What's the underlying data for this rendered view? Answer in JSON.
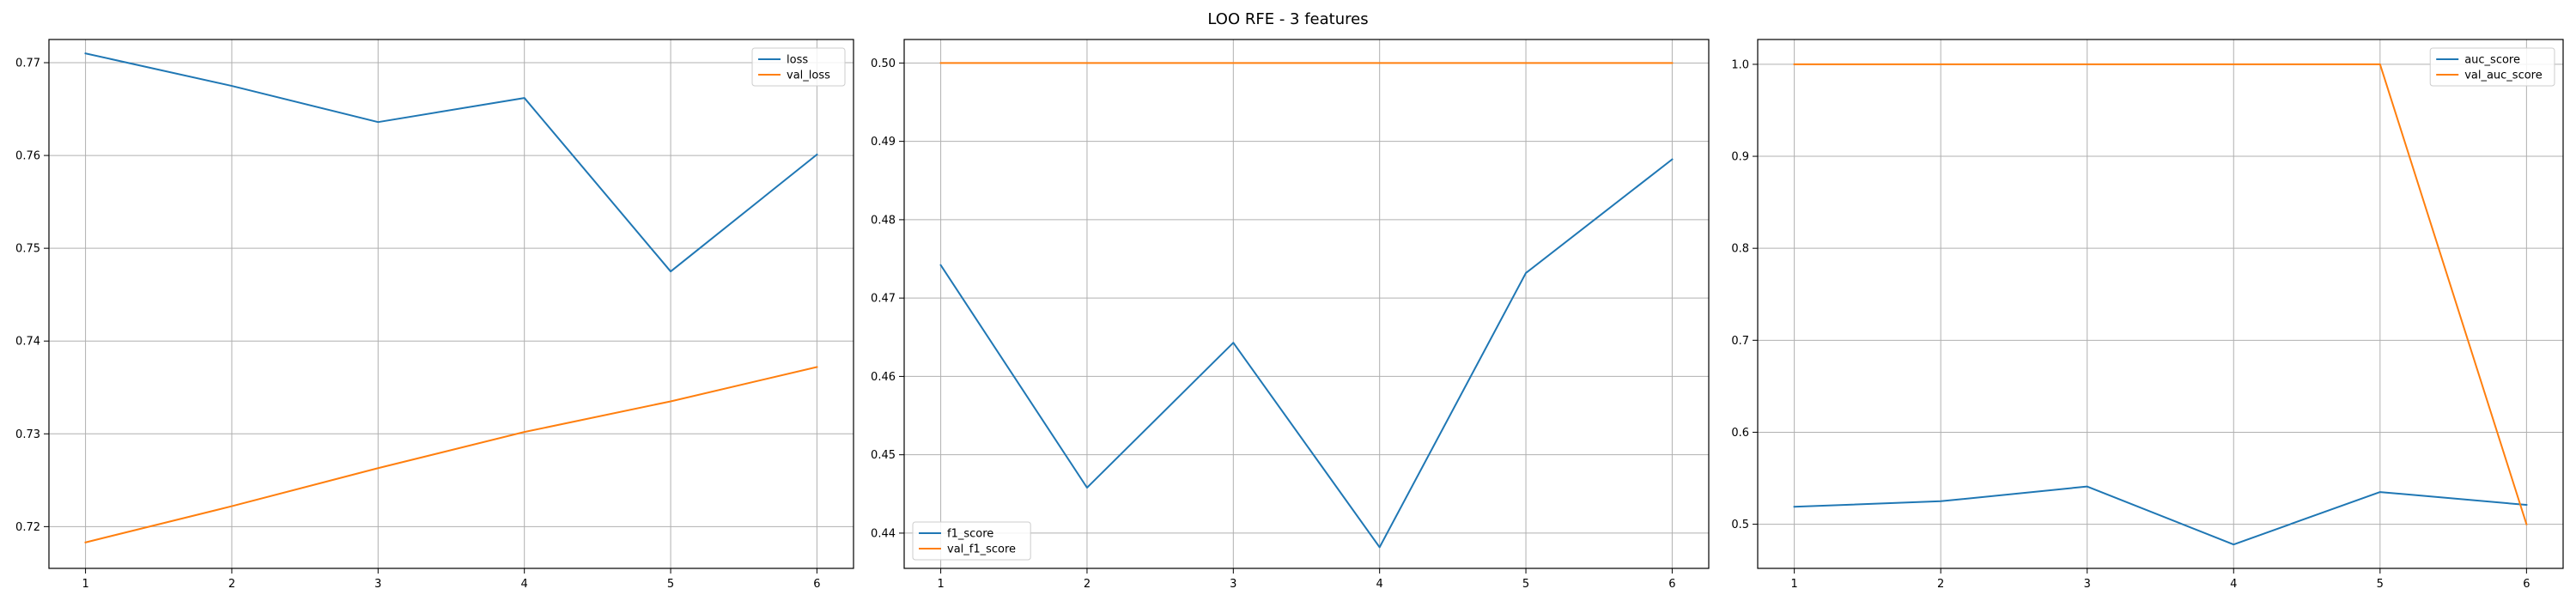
{
  "figure": {
    "title": "LOO RFE - 3 features"
  },
  "colors": {
    "series1": "#1f77b4",
    "series2": "#ff7f0e",
    "grid": "#b0b0b0",
    "axis": "#000000"
  },
  "chart_data": [
    {
      "type": "line",
      "title": "",
      "xlabel": "",
      "ylabel": "",
      "grid": true,
      "legend_position": "top-right",
      "x": [
        1,
        2,
        3,
        4,
        5,
        6
      ],
      "xlim": [
        0.75,
        6.25
      ],
      "ylim": [
        0.7155,
        0.7725
      ],
      "xticks": [
        "1",
        "2",
        "3",
        "4",
        "5",
        "6"
      ],
      "yticks": [
        0.72,
        0.73,
        0.74,
        0.75,
        0.76,
        0.77
      ],
      "ytick_labels": [
        "0.72",
        "0.73",
        "0.74",
        "0.75",
        "0.76",
        "0.77"
      ],
      "series": [
        {
          "name": "loss",
          "values": [
            0.771,
            0.7675,
            0.7636,
            0.7662,
            0.7475,
            0.7601
          ]
        },
        {
          "name": "val_loss",
          "values": [
            0.7183,
            0.7222,
            0.7263,
            0.7302,
            0.7335,
            0.7372
          ]
        }
      ]
    },
    {
      "type": "line",
      "title": "",
      "xlabel": "",
      "ylabel": "",
      "grid": true,
      "legend_position": "bottom-left",
      "x": [
        1,
        2,
        3,
        4,
        5,
        6
      ],
      "xlim": [
        0.75,
        6.25
      ],
      "ylim": [
        0.4355,
        0.503
      ],
      "xticks": [
        "1",
        "2",
        "3",
        "4",
        "5",
        "6"
      ],
      "yticks": [
        0.44,
        0.45,
        0.46,
        0.47,
        0.48,
        0.49,
        0.5
      ],
      "ytick_labels": [
        "0.44",
        "0.45",
        "0.46",
        "0.47",
        "0.48",
        "0.49",
        "0.50"
      ],
      "series": [
        {
          "name": "f1_score",
          "values": [
            0.4742,
            0.4458,
            0.4643,
            0.4382,
            0.4732,
            0.4877
          ]
        },
        {
          "name": "val_f1_score",
          "values": [
            0.5,
            0.5,
            0.5,
            0.5,
            0.5,
            0.5
          ]
        }
      ]
    },
    {
      "type": "line",
      "title": "",
      "xlabel": "",
      "ylabel": "",
      "grid": true,
      "legend_position": "top-right",
      "x": [
        1,
        2,
        3,
        4,
        5,
        6
      ],
      "xlim": [
        0.75,
        6.25
      ],
      "ylim": [
        0.452,
        1.027
      ],
      "xticks": [
        "1",
        "2",
        "3",
        "4",
        "5",
        "6"
      ],
      "yticks": [
        0.5,
        0.6,
        0.7,
        0.8,
        0.9,
        1.0
      ],
      "ytick_labels": [
        "0.5",
        "0.6",
        "0.7",
        "0.8",
        "0.9",
        "1.0"
      ],
      "series": [
        {
          "name": "auc_score",
          "values": [
            0.519,
            0.525,
            0.541,
            0.478,
            0.535,
            0.521
          ]
        },
        {
          "name": "val_auc_score",
          "values": [
            1.0,
            1.0,
            1.0,
            1.0,
            1.0,
            0.5
          ]
        }
      ]
    }
  ]
}
